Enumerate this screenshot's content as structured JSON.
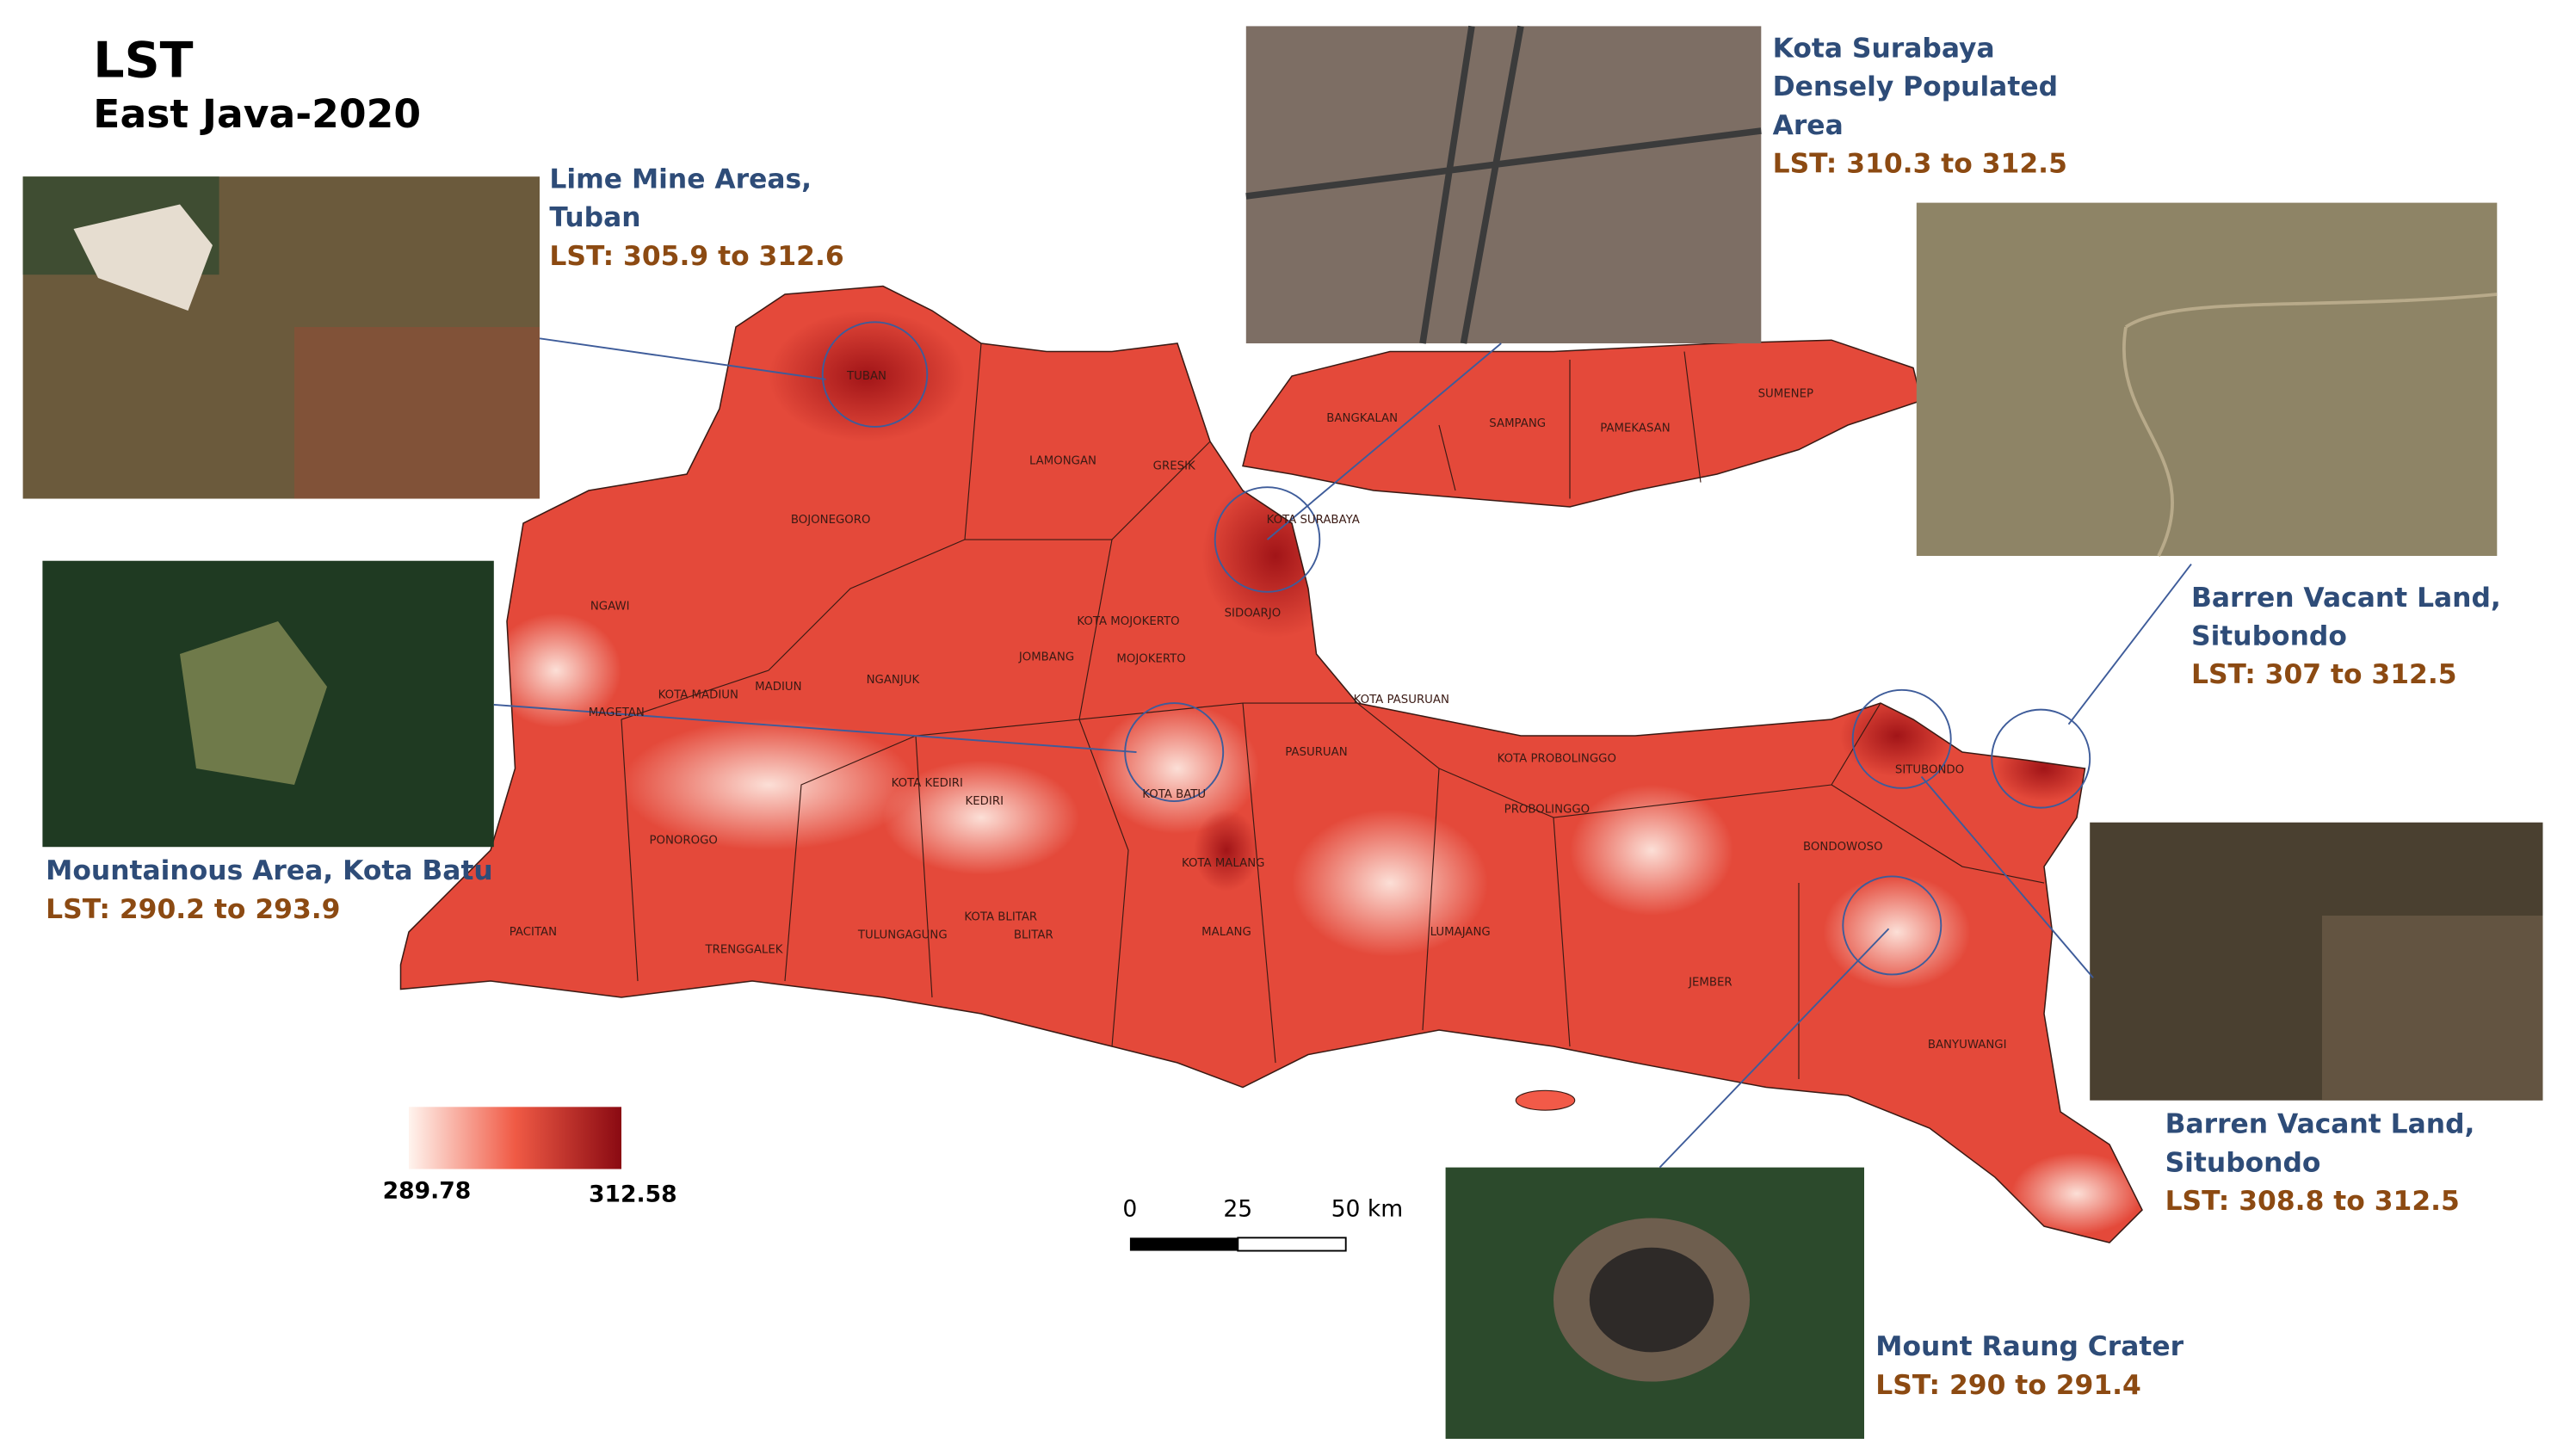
{
  "header": {
    "title": "LST",
    "subtitle": "East Java-2020"
  },
  "callouts": [
    {
      "lines": [
        "Lime Mine Areas,",
        "Tuban"
      ],
      "lst": "LST: 305.9 to 312.6"
    },
    {
      "lines": [
        "Mountainous Area, Kota Batu"
      ],
      "lst": "LST: 290.2 to 293.9"
    },
    {
      "lines": [
        "Kota Surabaya",
        "Densely Populated",
        "Area"
      ],
      "lst": "LST: 310.3 to 312.5"
    },
    {
      "lines": [
        "Barren Vacant Land,",
        "Situbondo"
      ],
      "lst": "LST: 307 to 312.5"
    },
    {
      "lines": [
        "Barren Vacant Land,",
        "Situbondo"
      ],
      "lst": "LST: 308.8 to 312.5"
    },
    {
      "lines": [
        "Mount Raung Crater"
      ],
      "lst": "LST: 290 to 291.4"
    }
  ],
  "regions": [
    "TUBAN",
    "LAMONGAN",
    "GRESIK",
    "BANGKALAN",
    "SAMPANG",
    "PAMEKASAN",
    "SUMENEP",
    "KOTA SURABAYA",
    "BOJONEGORO",
    "NGAWI",
    "SIDOARJO",
    "KOTA MOJOKERTO",
    "MOJOKERTO",
    "JOMBANG",
    "NGANJUK",
    "MADIUN",
    "KOTA MADIUN",
    "MAGETAN",
    "KOTA PASURUAN",
    "PASURUAN",
    "KOTA PROBOLINGGO",
    "PROBOLINGGO",
    "SITUBONDO",
    "BONDOWOSO",
    "KOTA BATU",
    "KOTA KEDIRI",
    "KEDIRI",
    "KOTA MALANG",
    "MALANG",
    "PONOROGO",
    "PACITAN",
    "TRENGGALEK",
    "TULUNGAGUNG",
    "KOTA BLITAR",
    "BLITAR",
    "LUMAJANG",
    "JEMBER",
    "BANYUWANGI"
  ],
  "legend": {
    "min": 289.78,
    "max": 312.58
  },
  "scale_bar": {
    "labels": [
      "0",
      "25",
      "50 km"
    ]
  }
}
